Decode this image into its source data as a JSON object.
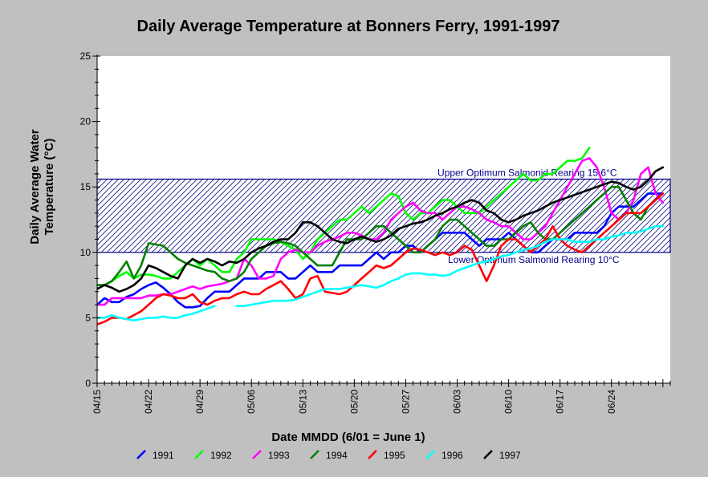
{
  "chart_data": {
    "type": "line",
    "title": "Daily Average Temperature at Bonners Ferry, 1991-1997",
    "xlabel": "Date MMDD (6/01 = June 1)",
    "ylabel_line1": "Daily Average Water",
    "ylabel_line2": "Temperature (°C)",
    "x_start": "04/15",
    "x_ticks": [
      "04/15",
      "04/22",
      "04/29",
      "05/06",
      "05/13",
      "05/20",
      "05/27",
      "06/03",
      "06/10",
      "06/17",
      "06/24"
    ],
    "xlim": [
      0,
      78
    ],
    "ylim": [
      0,
      25
    ],
    "y_ticks": [
      0,
      5,
      10,
      15,
      20,
      25
    ],
    "grid": false,
    "legend_position": "bottom",
    "band": {
      "lower": 10,
      "upper": 15.6,
      "upper_label": "Upper Optimum Salmonid Rearing 15.6°C",
      "lower_label": "Lower Optimum Salmonid Rearing 10°C",
      "color": "#00008b"
    },
    "series": [
      {
        "name": "1991",
        "color": "#0000ff",
        "x": [
          0,
          1,
          2,
          3,
          4,
          5,
          6,
          7,
          8,
          9,
          10,
          11,
          12,
          13,
          14,
          15,
          16,
          17,
          18,
          19,
          20,
          21,
          22,
          23,
          24,
          25,
          26,
          27,
          28,
          29,
          30,
          31,
          32,
          33,
          34,
          35,
          36,
          37,
          38,
          39,
          40,
          41,
          42,
          43,
          44,
          45,
          46,
          47,
          48,
          49,
          50,
          51,
          52,
          53,
          54,
          55,
          56,
          57,
          58,
          59,
          60,
          61,
          62,
          63,
          64,
          65,
          66,
          67,
          68,
          69,
          70,
          71,
          72,
          73,
          74,
          75,
          76,
          77
        ],
        "y": [
          6.0,
          6.5,
          6.2,
          6.2,
          6.6,
          6.8,
          7.2,
          7.5,
          7.7,
          7.3,
          6.8,
          6.2,
          5.8,
          5.8,
          5.9,
          6.5,
          7.0,
          7.0,
          7.0,
          7.5,
          8.0,
          8.0,
          8.0,
          8.5,
          8.5,
          8.5,
          8.0,
          8.0,
          8.5,
          9.0,
          8.5,
          8.5,
          8.5,
          9.0,
          9.0,
          9.0,
          9.0,
          9.5,
          10.0,
          9.5,
          10.0,
          10.0,
          10.5,
          10.5,
          10.0,
          10.5,
          11.0,
          11.5,
          11.5,
          11.5,
          11.5,
          11.0,
          10.5,
          11.0,
          11.0,
          11.0,
          11.5,
          11.0,
          10.5,
          10.0,
          10.0,
          10.5,
          11.0,
          11.0,
          11.0,
          11.5,
          11.5,
          11.5,
          11.5,
          12.0,
          13.0,
          13.5,
          13.5,
          13.5,
          14.0,
          14.5,
          14.5,
          14.5
        ]
      },
      {
        "name": "1992",
        "color": "#00ff00",
        "x": [
          0,
          1,
          2,
          3,
          4,
          5,
          6,
          7,
          8,
          9,
          10,
          11,
          12,
          13,
          14,
          15,
          16,
          17,
          18,
          19,
          20,
          21,
          22,
          23,
          24,
          25,
          26,
          27,
          28,
          29,
          30,
          31,
          32,
          33,
          34,
          35,
          36,
          37,
          38,
          39,
          40,
          41,
          42,
          43,
          44,
          45,
          46,
          47,
          48,
          49,
          50,
          51,
          52,
          53,
          54,
          55,
          56,
          57,
          58,
          59,
          60,
          61,
          62,
          63,
          64,
          65,
          66,
          67
        ],
        "y": [
          7.5,
          7.5,
          7.8,
          8.2,
          8.5,
          8.0,
          8.3,
          8.3,
          8.2,
          8.0,
          8.0,
          8.5,
          9.0,
          9.5,
          9.0,
          9.5,
          9.0,
          8.5,
          8.5,
          9.5,
          10.0,
          11.0,
          11.0,
          11.0,
          11.0,
          10.8,
          10.5,
          10.2,
          9.5,
          10.0,
          11.0,
          11.5,
          12.0,
          12.5,
          12.5,
          13.0,
          13.5,
          13.0,
          13.5,
          14.0,
          14.5,
          14.3,
          13.0,
          12.5,
          13.0,
          13.0,
          13.5,
          14.0,
          14.0,
          13.5,
          13.0,
          13.0,
          13.0,
          13.5,
          14.0,
          14.5,
          15.0,
          15.5,
          16.0,
          15.5,
          15.5,
          16.0,
          16.0,
          16.5,
          17.0,
          17.0,
          17.2,
          18.0
        ]
      },
      {
        "name": "1993",
        "color": "#ff00ff",
        "x": [
          0,
          1,
          2,
          3,
          4,
          5,
          6,
          7,
          8,
          9,
          10,
          11,
          12,
          13,
          14,
          15,
          16,
          17,
          18,
          19,
          20,
          21,
          22,
          23,
          24,
          25,
          26,
          27,
          28,
          29,
          30,
          31,
          32,
          33,
          34,
          35,
          36,
          37,
          38,
          39,
          40,
          41,
          42,
          43,
          44,
          45,
          46,
          47,
          48,
          49,
          50,
          51,
          52,
          53,
          54,
          55,
          56,
          57,
          58,
          59,
          60,
          61,
          62,
          63,
          64,
          65,
          66,
          67,
          68,
          69,
          70,
          71,
          72,
          73,
          74,
          75,
          76,
          77
        ],
        "y": [
          6.0,
          6.0,
          6.5,
          6.5,
          6.5,
          6.5,
          6.5,
          6.7,
          6.7,
          6.8,
          6.8,
          7.0,
          7.2,
          7.4,
          7.2,
          7.4,
          7.5,
          7.6,
          7.8,
          8.0,
          9.5,
          9.0,
          8.0,
          8.0,
          8.2,
          9.5,
          10.0,
          10.2,
          10.0,
          10.0,
          10.5,
          10.8,
          11.0,
          11.2,
          11.5,
          11.5,
          11.3,
          11.0,
          11.0,
          11.5,
          12.5,
          13.0,
          13.5,
          13.8,
          13.2,
          13.0,
          13.0,
          12.5,
          13.0,
          13.5,
          13.5,
          13.3,
          13.0,
          12.5,
          12.3,
          12.0,
          12.0,
          11.5,
          11.0,
          11.0,
          11.5,
          12.0,
          13.0,
          14.0,
          15.0,
          16.0,
          17.0,
          17.2,
          16.5,
          15.0,
          13.0,
          12.5,
          13.0,
          14.0,
          16.0,
          16.5,
          14.5,
          13.8
        ]
      },
      {
        "name": "1994",
        "color": "#008000",
        "x": [
          0,
          1,
          2,
          3,
          4,
          5,
          6,
          7,
          8,
          9,
          10,
          11,
          12,
          13,
          14,
          15,
          16,
          17,
          18,
          19,
          20,
          21,
          22,
          23,
          24,
          25,
          26,
          27,
          28,
          29,
          30,
          31,
          32,
          33,
          34,
          35,
          36,
          37,
          38,
          39,
          40,
          41,
          42,
          43,
          44,
          45,
          46,
          47,
          48,
          49,
          50,
          51,
          52,
          53,
          54,
          55,
          56,
          57,
          58,
          59,
          60,
          61,
          62,
          63,
          64,
          65,
          66,
          67,
          68,
          69,
          70,
          71,
          72,
          73,
          74,
          75,
          76,
          77
        ],
        "y": [
          7.5,
          7.5,
          7.8,
          8.5,
          9.3,
          8.0,
          9.0,
          10.7,
          10.6,
          10.5,
          10.0,
          9.5,
          9.2,
          9.0,
          8.8,
          8.6,
          8.5,
          8.0,
          7.8,
          8.0,
          8.5,
          9.5,
          10.0,
          10.5,
          10.7,
          10.8,
          10.7,
          10.5,
          10.0,
          9.5,
          9.0,
          9.0,
          9.0,
          10.0,
          11.0,
          11.0,
          11.0,
          11.5,
          12.0,
          12.0,
          11.5,
          11.0,
          10.5,
          10.0,
          10.0,
          10.5,
          11.0,
          12.0,
          12.5,
          12.5,
          12.0,
          11.5,
          11.0,
          10.5,
          10.5,
          11.0,
          11.0,
          11.5,
          12.0,
          12.3,
          11.5,
          11.0,
          11.0,
          11.5,
          12.0,
          12.5,
          13.0,
          13.5,
          14.0,
          14.5,
          15.0,
          15.0,
          14.0,
          13.0,
          12.5,
          13.5,
          14.0,
          14.5
        ]
      },
      {
        "name": "1995",
        "color": "#ff0000",
        "x": [
          0,
          1,
          2,
          3,
          4,
          5,
          6,
          7,
          8,
          9,
          10,
          11,
          12,
          13,
          14,
          15,
          16,
          17,
          18,
          19,
          20,
          21,
          22,
          23,
          24,
          25,
          26,
          27,
          28,
          29,
          30,
          31,
          32,
          33,
          34,
          35,
          36,
          37,
          38,
          39,
          40,
          41,
          42,
          43,
          44,
          45,
          46,
          47,
          48,
          49,
          50,
          51,
          52,
          53,
          54,
          55,
          56,
          57,
          58,
          59,
          60,
          61,
          62,
          63,
          64,
          65,
          66,
          67,
          68,
          69,
          70,
          71,
          72,
          73,
          74,
          75,
          76,
          77
        ],
        "y": [
          4.5,
          4.7,
          5.0,
          5.0,
          4.9,
          5.2,
          5.5,
          6.0,
          6.5,
          6.8,
          6.7,
          6.5,
          6.5,
          6.8,
          6.2,
          6.0,
          6.3,
          6.5,
          6.5,
          6.8,
          7.0,
          6.8,
          6.8,
          7.2,
          7.5,
          7.8,
          7.2,
          6.5,
          6.8,
          8.0,
          8.2,
          7.0,
          6.9,
          6.8,
          7.0,
          7.5,
          8.0,
          8.5,
          9.0,
          8.8,
          9.0,
          9.5,
          10.0,
          10.3,
          10.2,
          10.0,
          9.8,
          10.0,
          9.8,
          10.0,
          10.5,
          10.2,
          9.0,
          7.8,
          9.0,
          10.5,
          11.0,
          11.0,
          10.5,
          10.0,
          10.5,
          11.0,
          12.0,
          11.0,
          10.5,
          10.2,
          10.0,
          10.5,
          11.0,
          11.5,
          12.0,
          12.5,
          13.0,
          13.0,
          13.0,
          13.5,
          14.0,
          14.5
        ]
      },
      {
        "name": "1996",
        "color": "#00ffff",
        "segments": [
          {
            "x": [
              0,
              1,
              2,
              3,
              4,
              5,
              6,
              7,
              8,
              9,
              10,
              11,
              12,
              13,
              14,
              15,
              16
            ],
            "y": [
              5.0,
              5.0,
              5.2,
              5.0,
              4.9,
              4.8,
              4.9,
              5.0,
              5.0,
              5.1,
              5.0,
              5.0,
              5.2,
              5.3,
              5.5,
              5.7,
              5.9
            ]
          },
          {
            "x": [
              19,
              20,
              21,
              22,
              23,
              24,
              25,
              26,
              27,
              28,
              29,
              30,
              31,
              32,
              33,
              34,
              35,
              36,
              37,
              38,
              39,
              40,
              41,
              42,
              43,
              44,
              45,
              46,
              47,
              48,
              49,
              50,
              51,
              52,
              53,
              54,
              55,
              56,
              57,
              58,
              59,
              60,
              61,
              62,
              63,
              64,
              65,
              66,
              67,
              68,
              69,
              70,
              71,
              72,
              73,
              74,
              75,
              76,
              77
            ],
            "y": [
              5.9,
              5.9,
              6.0,
              6.1,
              6.2,
              6.3,
              6.3,
              6.3,
              6.4,
              6.6,
              6.8,
              7.0,
              7.2,
              7.2,
              7.2,
              7.3,
              7.4,
              7.5,
              7.4,
              7.3,
              7.5,
              7.8,
              8.0,
              8.3,
              8.4,
              8.4,
              8.3,
              8.3,
              8.2,
              8.3,
              8.6,
              8.8,
              9.0,
              9.2,
              9.3,
              9.5,
              9.7,
              9.8,
              10.0,
              10.2,
              10.3,
              10.5,
              10.8,
              11.0,
              11.0,
              11.0,
              10.8,
              10.8,
              10.8,
              11.0,
              11.0,
              11.2,
              11.3,
              11.5,
              11.5,
              11.6,
              11.8,
              12.0,
              12.0
            ]
          }
        ]
      },
      {
        "name": "1997",
        "color": "#000000",
        "x": [
          0,
          1,
          2,
          3,
          4,
          5,
          6,
          7,
          8,
          9,
          10,
          11,
          12,
          13,
          14,
          15,
          16,
          17,
          18,
          19,
          20,
          21,
          22,
          23,
          24,
          25,
          26,
          27,
          28,
          29,
          30,
          31,
          32,
          33,
          34,
          35,
          36,
          37,
          38,
          39,
          40,
          41,
          42,
          43,
          44,
          45,
          46,
          47,
          48,
          49,
          50,
          51,
          52,
          53,
          54,
          55,
          56,
          57,
          58,
          59,
          60,
          61,
          62,
          63,
          64,
          65,
          66,
          67,
          68,
          69,
          70,
          71,
          72,
          73,
          74,
          75,
          76,
          77
        ],
        "y": [
          7.2,
          7.5,
          7.3,
          7.0,
          7.2,
          7.5,
          8.0,
          9.0,
          8.8,
          8.5,
          8.2,
          8.0,
          9.0,
          9.5,
          9.2,
          9.5,
          9.3,
          9.0,
          9.3,
          9.2,
          9.5,
          10.0,
          10.3,
          10.5,
          10.8,
          11.0,
          11.0,
          11.5,
          12.3,
          12.3,
          12.0,
          11.5,
          11.0,
          10.8,
          10.7,
          11.0,
          11.2,
          11.0,
          10.8,
          11.0,
          11.3,
          11.8,
          12.0,
          12.2,
          12.3,
          12.5,
          12.8,
          13.0,
          13.3,
          13.5,
          13.8,
          14.0,
          13.8,
          13.2,
          13.0,
          12.5,
          12.3,
          12.5,
          12.8,
          13.0,
          13.2,
          13.5,
          13.8,
          14.0,
          14.2,
          14.4,
          14.6,
          14.8,
          15.0,
          15.2,
          15.4,
          15.3,
          15.0,
          14.8,
          15.0,
          15.5,
          16.2,
          16.5
        ]
      }
    ]
  }
}
